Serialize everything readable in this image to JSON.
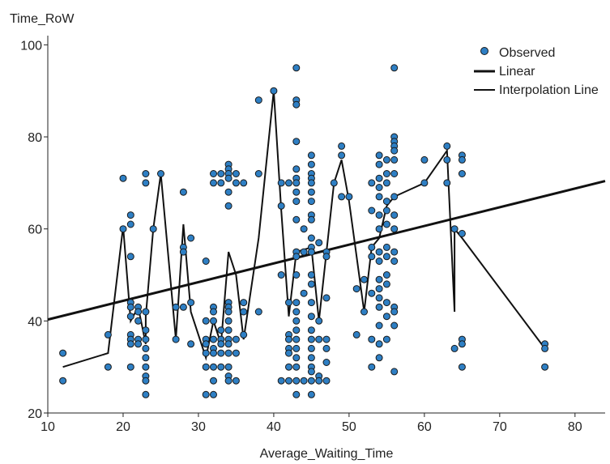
{
  "chart_data": {
    "type": "scatter",
    "ylabel": "Time_RoW",
    "xlabel": "Average_Waiting_Time",
    "xlim": [
      10,
      84
    ],
    "ylim": [
      20,
      102
    ],
    "xticks": [
      10,
      20,
      30,
      40,
      50,
      60,
      70,
      80
    ],
    "yticks": [
      20,
      40,
      60,
      80,
      100
    ],
    "grid": false,
    "legend_position": "top-right",
    "colors": {
      "observed_fill": "#2e7fc4",
      "observed_stroke": "#1a1a1a",
      "line": "#111111"
    },
    "legend": [
      {
        "label": "Observed",
        "kind": "point"
      },
      {
        "label": "Linear",
        "kind": "thick-line"
      },
      {
        "label": "Interpolation Line",
        "kind": "thin-line"
      }
    ],
    "observed": [
      [
        12,
        33
      ],
      [
        12,
        27
      ],
      [
        18,
        37
      ],
      [
        18,
        30
      ],
      [
        20,
        71
      ],
      [
        20,
        60
      ],
      [
        21,
        63
      ],
      [
        21,
        61
      ],
      [
        21,
        54
      ],
      [
        21,
        44
      ],
      [
        21,
        43
      ],
      [
        21,
        41
      ],
      [
        21,
        37
      ],
      [
        21,
        36
      ],
      [
        21,
        35
      ],
      [
        21,
        30
      ],
      [
        22,
        43
      ],
      [
        22,
        42
      ],
      [
        22,
        40
      ],
      [
        22,
        36
      ],
      [
        22,
        35
      ],
      [
        23,
        72
      ],
      [
        23,
        70
      ],
      [
        23,
        42
      ],
      [
        23,
        38
      ],
      [
        23,
        36
      ],
      [
        23,
        34
      ],
      [
        23,
        32
      ],
      [
        23,
        30
      ],
      [
        23,
        28
      ],
      [
        23,
        27
      ],
      [
        23,
        24
      ],
      [
        24,
        60
      ],
      [
        25,
        72
      ],
      [
        27,
        43
      ],
      [
        27,
        36
      ],
      [
        28,
        68
      ],
      [
        28,
        56
      ],
      [
        28,
        55
      ],
      [
        28,
        43
      ],
      [
        29,
        58
      ],
      [
        29,
        44
      ],
      [
        29,
        35
      ],
      [
        31,
        53
      ],
      [
        31,
        40
      ],
      [
        31,
        36
      ],
      [
        31,
        35
      ],
      [
        31,
        33
      ],
      [
        31,
        30
      ],
      [
        31,
        24
      ],
      [
        32,
        72
      ],
      [
        32,
        70
      ],
      [
        32,
        43
      ],
      [
        32,
        42
      ],
      [
        32,
        40
      ],
      [
        32,
        36
      ],
      [
        32,
        34
      ],
      [
        32,
        33
      ],
      [
        32,
        30
      ],
      [
        32,
        27
      ],
      [
        32,
        24
      ],
      [
        33,
        72
      ],
      [
        33,
        70
      ],
      [
        33,
        38
      ],
      [
        33,
        36
      ],
      [
        33,
        35
      ],
      [
        33,
        33
      ],
      [
        33,
        30
      ],
      [
        34,
        74
      ],
      [
        34,
        73
      ],
      [
        34,
        72
      ],
      [
        34,
        71
      ],
      [
        34,
        68
      ],
      [
        34,
        65
      ],
      [
        34,
        44
      ],
      [
        34,
        43
      ],
      [
        34,
        42
      ],
      [
        34,
        40
      ],
      [
        34,
        38
      ],
      [
        34,
        36
      ],
      [
        34,
        35
      ],
      [
        34,
        33
      ],
      [
        34,
        30
      ],
      [
        34,
        28
      ],
      [
        34,
        27
      ],
      [
        35,
        72
      ],
      [
        35,
        70
      ],
      [
        35,
        36
      ],
      [
        35,
        33
      ],
      [
        35,
        27
      ],
      [
        36,
        70
      ],
      [
        36,
        44
      ],
      [
        36,
        42
      ],
      [
        36,
        37
      ],
      [
        38,
        88
      ],
      [
        38,
        72
      ],
      [
        38,
        42
      ],
      [
        40,
        90
      ],
      [
        41,
        70
      ],
      [
        41,
        65
      ],
      [
        41,
        50
      ],
      [
        41,
        27
      ],
      [
        42,
        70
      ],
      [
        42,
        44
      ],
      [
        42,
        37
      ],
      [
        42,
        36
      ],
      [
        42,
        34
      ],
      [
        42,
        33
      ],
      [
        42,
        30
      ],
      [
        42,
        27
      ],
      [
        43,
        95
      ],
      [
        43,
        88
      ],
      [
        43,
        87
      ],
      [
        43,
        79
      ],
      [
        43,
        73
      ],
      [
        43,
        71
      ],
      [
        43,
        70
      ],
      [
        43,
        68
      ],
      [
        43,
        66
      ],
      [
        43,
        62
      ],
      [
        43,
        55
      ],
      [
        43,
        54
      ],
      [
        43,
        50
      ],
      [
        43,
        44
      ],
      [
        43,
        42
      ],
      [
        43,
        40
      ],
      [
        43,
        38
      ],
      [
        43,
        36
      ],
      [
        43,
        34
      ],
      [
        43,
        32
      ],
      [
        43,
        30
      ],
      [
        43,
        27
      ],
      [
        43,
        24
      ],
      [
        44,
        60
      ],
      [
        44,
        55
      ],
      [
        44,
        46
      ],
      [
        44,
        27
      ],
      [
        45,
        76
      ],
      [
        45,
        74
      ],
      [
        45,
        72
      ],
      [
        45,
        71
      ],
      [
        45,
        70
      ],
      [
        45,
        68
      ],
      [
        45,
        66
      ],
      [
        45,
        63
      ],
      [
        45,
        62
      ],
      [
        45,
        58
      ],
      [
        45,
        56
      ],
      [
        45,
        55
      ],
      [
        45,
        50
      ],
      [
        45,
        48
      ],
      [
        45,
        44
      ],
      [
        45,
        41
      ],
      [
        45,
        38
      ],
      [
        45,
        36
      ],
      [
        45,
        34
      ],
      [
        45,
        32
      ],
      [
        45,
        30
      ],
      [
        45,
        29
      ],
      [
        45,
        27
      ],
      [
        45,
        24
      ],
      [
        46,
        57
      ],
      [
        46,
        40
      ],
      [
        46,
        36
      ],
      [
        46,
        28
      ],
      [
        46,
        27
      ],
      [
        47,
        55
      ],
      [
        47,
        54
      ],
      [
        47,
        45
      ],
      [
        47,
        36
      ],
      [
        47,
        34
      ],
      [
        47,
        31
      ],
      [
        47,
        27
      ],
      [
        48,
        70
      ],
      [
        49,
        78
      ],
      [
        49,
        76
      ],
      [
        49,
        67
      ],
      [
        50,
        67
      ],
      [
        51,
        47
      ],
      [
        51,
        37
      ],
      [
        52,
        49
      ],
      [
        52,
        42
      ],
      [
        53,
        70
      ],
      [
        53,
        64
      ],
      [
        53,
        56
      ],
      [
        53,
        54
      ],
      [
        53,
        46
      ],
      [
        53,
        36
      ],
      [
        53,
        30
      ],
      [
        54,
        76
      ],
      [
        54,
        74
      ],
      [
        54,
        71
      ],
      [
        54,
        69
      ],
      [
        54,
        67
      ],
      [
        54,
        63
      ],
      [
        54,
        60
      ],
      [
        54,
        55
      ],
      [
        54,
        53
      ],
      [
        54,
        49
      ],
      [
        54,
        47
      ],
      [
        54,
        45
      ],
      [
        54,
        43
      ],
      [
        54,
        39
      ],
      [
        54,
        35
      ],
      [
        54,
        32
      ],
      [
        55,
        75
      ],
      [
        55,
        72
      ],
      [
        55,
        70
      ],
      [
        55,
        66
      ],
      [
        55,
        64
      ],
      [
        55,
        61
      ],
      [
        55,
        56
      ],
      [
        55,
        54
      ],
      [
        55,
        50
      ],
      [
        55,
        48
      ],
      [
        55,
        44
      ],
      [
        55,
        41
      ],
      [
        55,
        36
      ],
      [
        56,
        95
      ],
      [
        56,
        80
      ],
      [
        56,
        79
      ],
      [
        56,
        78
      ],
      [
        56,
        77
      ],
      [
        56,
        75
      ],
      [
        56,
        72
      ],
      [
        56,
        67
      ],
      [
        56,
        63
      ],
      [
        56,
        60
      ],
      [
        56,
        55
      ],
      [
        56,
        53
      ],
      [
        56,
        43
      ],
      [
        56,
        42
      ],
      [
        56,
        39
      ],
      [
        56,
        29
      ],
      [
        60,
        75
      ],
      [
        60,
        70
      ],
      [
        63,
        78
      ],
      [
        63,
        75
      ],
      [
        63,
        70
      ],
      [
        64,
        60
      ],
      [
        64,
        34
      ],
      [
        65,
        76
      ],
      [
        65,
        75
      ],
      [
        65,
        72
      ],
      [
        65,
        59
      ],
      [
        65,
        36
      ],
      [
        65,
        35
      ],
      [
        65,
        30
      ],
      [
        76,
        35
      ],
      [
        76,
        34
      ],
      [
        76,
        30
      ]
    ],
    "linear_fit": [
      [
        10,
        40.3
      ],
      [
        84,
        70.4
      ]
    ],
    "interpolation_line": [
      [
        12,
        30
      ],
      [
        18,
        33
      ],
      [
        20,
        60.5
      ],
      [
        21,
        40
      ],
      [
        22,
        43
      ],
      [
        23,
        35
      ],
      [
        23,
        41
      ],
      [
        24,
        60
      ],
      [
        25,
        72
      ],
      [
        27,
        36
      ],
      [
        28,
        61
      ],
      [
        29,
        42
      ],
      [
        31,
        32
      ],
      [
        32,
        40
      ],
      [
        33,
        35
      ],
      [
        34,
        55
      ],
      [
        35,
        50
      ],
      [
        36,
        36
      ],
      [
        38,
        58
      ],
      [
        40,
        90
      ],
      [
        41,
        64
      ],
      [
        42,
        41
      ],
      [
        43,
        55
      ],
      [
        45,
        56
      ],
      [
        46,
        40
      ],
      [
        48,
        70
      ],
      [
        49,
        75
      ],
      [
        50,
        66
      ],
      [
        52,
        42
      ],
      [
        53,
        56
      ],
      [
        54,
        58
      ],
      [
        55,
        65
      ],
      [
        56,
        67
      ],
      [
        60,
        70
      ],
      [
        63,
        77
      ],
      [
        64,
        42
      ],
      [
        64,
        60
      ],
      [
        65,
        58
      ],
      [
        76,
        34
      ]
    ]
  }
}
